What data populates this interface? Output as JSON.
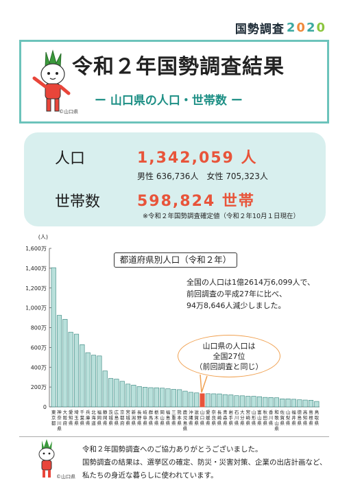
{
  "brand": {
    "label": "国勢調査",
    "year_digits": [
      "2",
      "0",
      "2",
      "0"
    ],
    "digit_colors": [
      "#3aa8a0",
      "#f08a3c",
      "#3aa8a0",
      "#8cc63f"
    ]
  },
  "header": {
    "title": "令和２年国勢調査結果",
    "subtitle": "ー 山口県の人口・世帯数 ー",
    "copyright": "©山口県"
  },
  "stats": {
    "population_label": "人口",
    "population_value": "1,342,059 人",
    "gender_line": "男性 636,736人　女性 705,323人",
    "households_label": "世帯数",
    "households_value": "598,824 世帯",
    "footnote": "※令和２年国勢調査確定値（令和２年10月１日現在）"
  },
  "chart_data": {
    "type": "bar",
    "title": "都道府県別人口（令和２年）",
    "ylabel": "(人)",
    "ylim": [
      0,
      1600
    ],
    "yticks": [
      "0",
      "200万",
      "400万",
      "600万",
      "800万",
      "1,000万",
      "1,200万",
      "1,400万",
      "1,600万"
    ],
    "categories": [
      "東京都",
      "神奈川県",
      "大阪府",
      "愛知県",
      "埼玉県",
      "千葉県",
      "兵庫県",
      "北海道",
      "福岡県",
      "静岡県",
      "茨城県",
      "広島県",
      "京都府",
      "宮城県",
      "新潟県",
      "長野県",
      "岐阜県",
      "群馬県",
      "栃木県",
      "岡山県",
      "福島県",
      "三重県",
      "熊本県",
      "鹿児島県",
      "沖縄県",
      "滋賀県",
      "山口県",
      "愛媛県",
      "奈良県",
      "長崎県",
      "青森県",
      "岩手県",
      "石川県",
      "大分県",
      "宮崎県",
      "山形県",
      "富山県",
      "秋田県",
      "香川県",
      "和歌山県",
      "佐賀県",
      "山梨県",
      "福井県",
      "徳島県",
      "高知県",
      "島根県",
      "鳥取県"
    ],
    "values": [
      1405,
      924,
      884,
      754,
      734,
      628,
      547,
      522,
      514,
      363,
      287,
      280,
      258,
      230,
      220,
      205,
      198,
      194,
      193,
      189,
      183,
      177,
      174,
      159,
      147,
      141,
      134,
      133,
      132,
      131,
      124,
      121,
      113,
      112,
      107,
      107,
      103,
      96,
      95,
      92,
      81,
      81,
      77,
      72,
      69,
      67,
      55
    ],
    "highlight_index": 26,
    "bar_color": "#b9e0db",
    "bar_stroke": "#2e7f78",
    "highlight_color": "#e8543a",
    "note": [
      "全国の人口は1億2614万6,099人で、",
      "前回調査の平成27年に比べ、",
      "94万8,646人減少しました。"
    ],
    "callout": [
      "山口県の人口は",
      "全国27位",
      "（前回調査と同じ）"
    ]
  },
  "footer": {
    "lines": [
      "令和２年国勢調査へのご協力ありがとうございました。",
      "国勢調査の結果は、選挙区の確定、防災・災害対策、企業の出店計画など、",
      "私たちの身近な暮らしに使われています。"
    ],
    "copyright": "©山口県"
  }
}
